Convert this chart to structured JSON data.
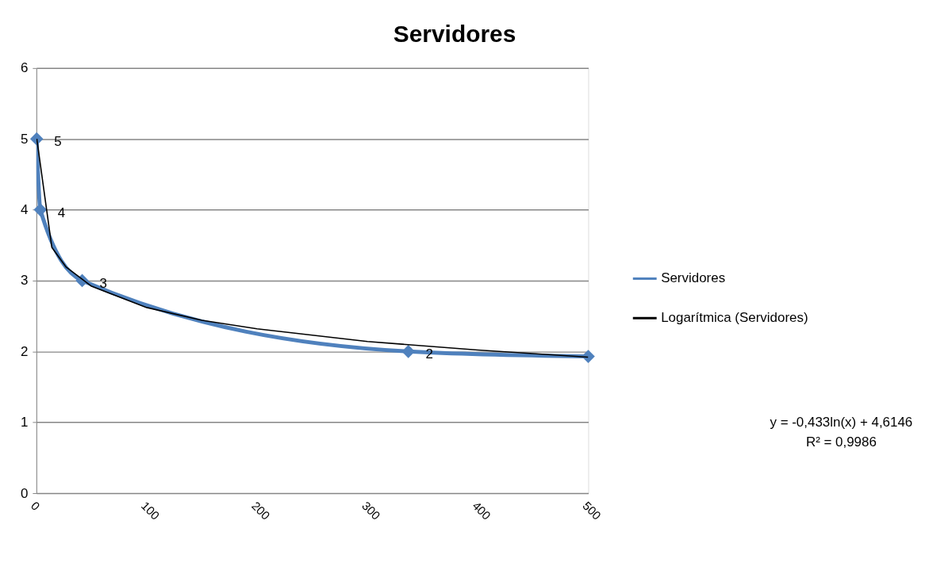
{
  "chart_data": {
    "type": "scatter",
    "title": "Servidores",
    "series": [
      {
        "name": "Servidores",
        "type": "line",
        "color": "#4f81bd",
        "marker": "diamond",
        "x": [
          0.3,
          3.6,
          41.5,
          337,
          500
        ],
        "values": [
          5,
          4,
          3,
          2,
          1.93
        ],
        "value_labels": [
          "5",
          "4",
          "3",
          "2",
          null
        ]
      },
      {
        "name": "Logarítmica (Servidores)",
        "type": "line",
        "color": "#000000",
        "marker": "none",
        "x": [
          0.4,
          14,
          27,
          50,
          100,
          150,
          200,
          300,
          400,
          500
        ],
        "values": [
          5,
          3.47,
          3.19,
          2.92,
          2.62,
          2.44,
          2.32,
          2.14,
          2.02,
          1.92
        ]
      }
    ],
    "xlim": [
      0,
      500
    ],
    "xticks": [
      0,
      100,
      200,
      300,
      400,
      500
    ],
    "ylim": [
      0,
      6
    ],
    "yticks": [
      0,
      1,
      2,
      3,
      4,
      5,
      6
    ],
    "grid": "y",
    "legend": "right",
    "annotations": [
      "y = -0,433ln(x) + 4,6146",
      "R² = 0,9986"
    ]
  }
}
